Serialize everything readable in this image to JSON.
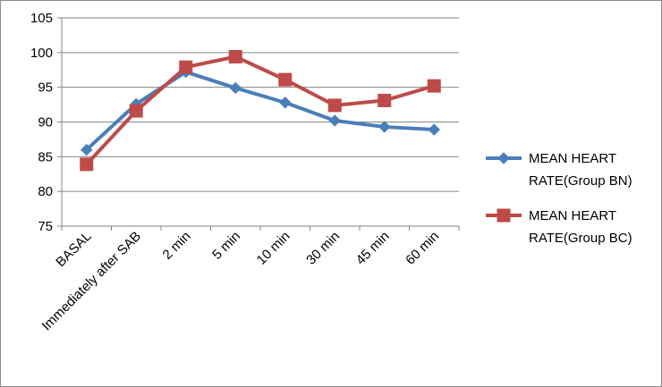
{
  "chart_data": {
    "type": "line",
    "title": "",
    "xlabel": "",
    "ylabel": "",
    "categories": [
      "BASAL",
      "Immediately after SAB",
      "2 min",
      "5 min",
      "10 min",
      "30 min",
      "45 min",
      "60 min"
    ],
    "ylim": [
      75,
      105
    ],
    "yticks": [
      75,
      80,
      85,
      90,
      95,
      100,
      105
    ],
    "grid": true,
    "legend_position": "right",
    "series": [
      {
        "name_lines": [
          "MEAN HEART",
          "RATE(Group BN)"
        ],
        "color": "#4a7ebb",
        "marker": "diamond",
        "values": [
          86.0,
          92.6,
          97.2,
          94.9,
          92.8,
          90.2,
          89.3,
          88.9
        ]
      },
      {
        "name_lines": [
          "MEAN HEART",
          "RATE(Group BC)"
        ],
        "color": "#be4b48",
        "marker": "square",
        "values": [
          83.9,
          91.6,
          97.9,
          99.4,
          96.1,
          92.4,
          93.1,
          95.2
        ]
      }
    ]
  }
}
